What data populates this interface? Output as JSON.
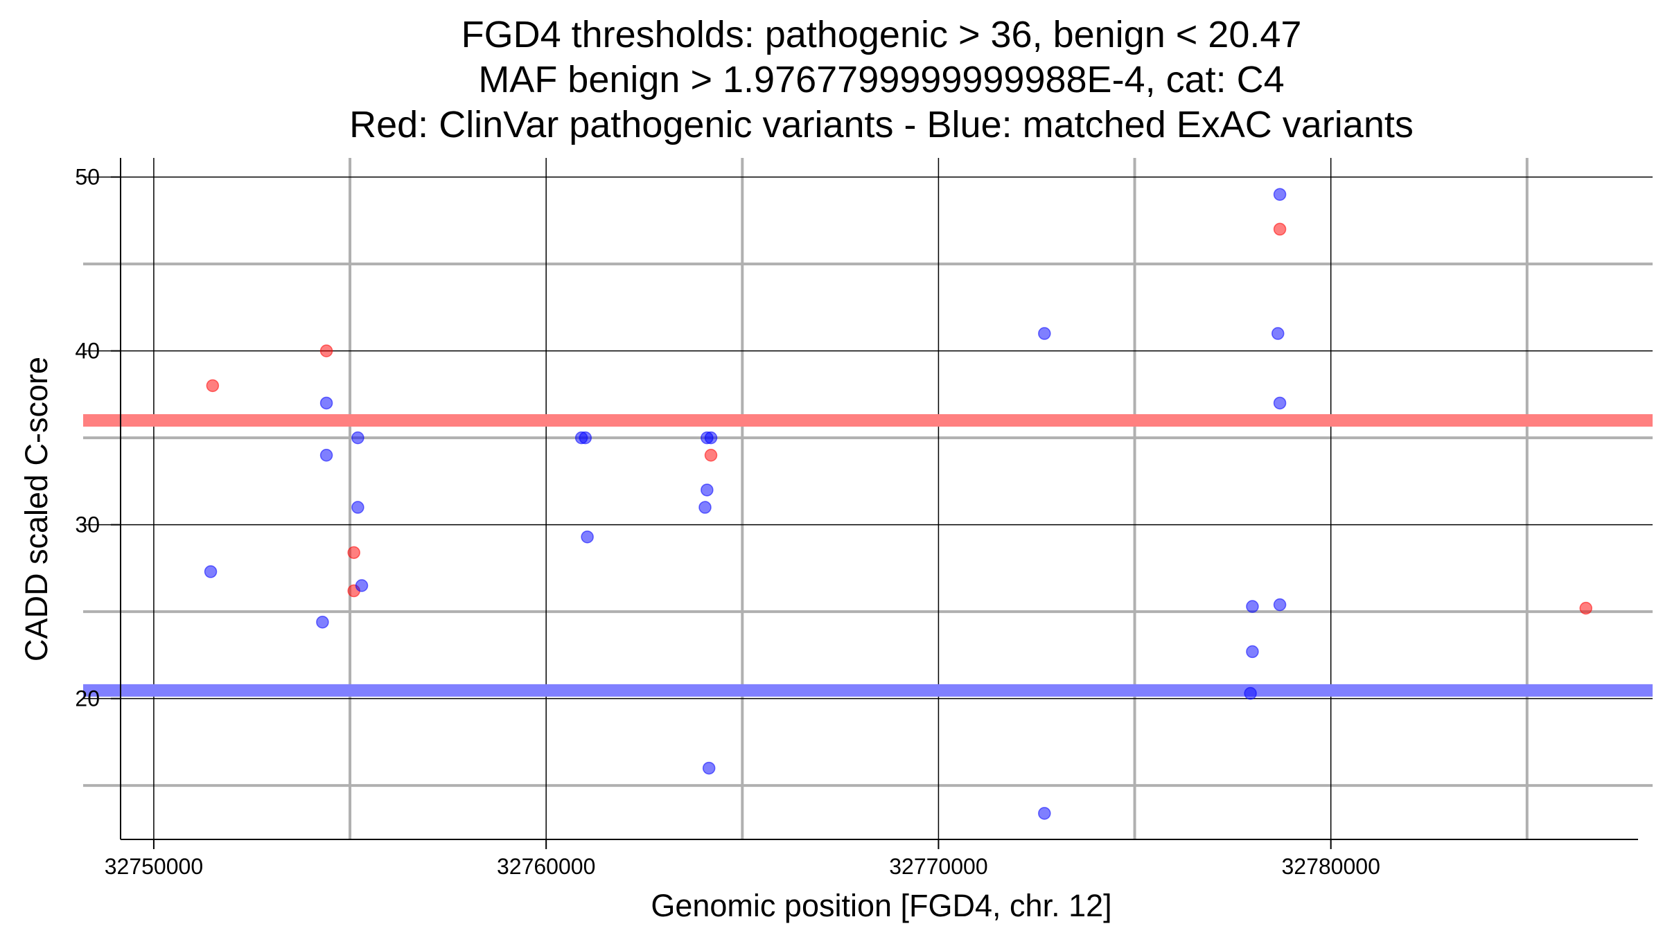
{
  "chart_data": {
    "type": "scatter",
    "title_lines": [
      "FGD4 thresholds: pathogenic > 36, benign < 20.47",
      "MAF benign > 1.9767799999999988E-4, cat: C4",
      "Red: ClinVar pathogenic variants - Blue: matched ExAC variants"
    ],
    "xlabel": "Genomic position [FGD4, chr. 12]",
    "ylabel": "CADD scaled C-score",
    "xlim": [
      32748200,
      32788200
    ],
    "ylim": [
      11.9,
      51.1
    ],
    "x_major_ticks": [
      32750000,
      32760000,
      32770000,
      32780000
    ],
    "x_tick_labels": [
      "32750000",
      "32760000",
      "32770000",
      "32780000"
    ],
    "x_minor_gridlines": [
      32755000,
      32765000,
      32775000,
      32785000
    ],
    "y_major_ticks": [
      20,
      30,
      40,
      50
    ],
    "y_tick_labels": [
      "20",
      "30",
      "40",
      "50"
    ],
    "y_minor_gridlines": [
      15,
      25,
      35,
      45
    ],
    "thresholds": [
      {
        "name": "pathogenic",
        "value": 36,
        "color": "#ff8080"
      },
      {
        "name": "benign",
        "value": 20.47,
        "color": "#8080ff"
      }
    ],
    "series": [
      {
        "name": "ClinVar pathogenic variants",
        "color": "#ff0000",
        "points": [
          {
            "x": 32751500,
            "y": 38
          },
          {
            "x": 32754400,
            "y": 40
          },
          {
            "x": 32755100,
            "y": 28.4
          },
          {
            "x": 32755100,
            "y": 26.2
          },
          {
            "x": 32764200,
            "y": 34
          },
          {
            "x": 32778700,
            "y": 47
          },
          {
            "x": 32786500,
            "y": 25.2
          }
        ]
      },
      {
        "name": "matched ExAC variants",
        "color": "#0000ff",
        "points": [
          {
            "x": 32751450,
            "y": 27.3
          },
          {
            "x": 32754300,
            "y": 24.4
          },
          {
            "x": 32754400,
            "y": 37
          },
          {
            "x": 32754400,
            "y": 34
          },
          {
            "x": 32755200,
            "y": 35
          },
          {
            "x": 32755200,
            "y": 31
          },
          {
            "x": 32755300,
            "y": 26.5
          },
          {
            "x": 32760900,
            "y": 35
          },
          {
            "x": 32761000,
            "y": 35
          },
          {
            "x": 32761050,
            "y": 29.3
          },
          {
            "x": 32764100,
            "y": 35
          },
          {
            "x": 32764200,
            "y": 35
          },
          {
            "x": 32764100,
            "y": 32
          },
          {
            "x": 32764050,
            "y": 31
          },
          {
            "x": 32764150,
            "y": 16
          },
          {
            "x": 32772700,
            "y": 41
          },
          {
            "x": 32772700,
            "y": 13.4
          },
          {
            "x": 32778000,
            "y": 25.3
          },
          {
            "x": 32778000,
            "y": 22.7
          },
          {
            "x": 32777950,
            "y": 20.3
          },
          {
            "x": 32778700,
            "y": 49
          },
          {
            "x": 32778650,
            "y": 41
          },
          {
            "x": 32778700,
            "y": 37
          },
          {
            "x": 32778700,
            "y": 25.4
          }
        ]
      }
    ]
  }
}
